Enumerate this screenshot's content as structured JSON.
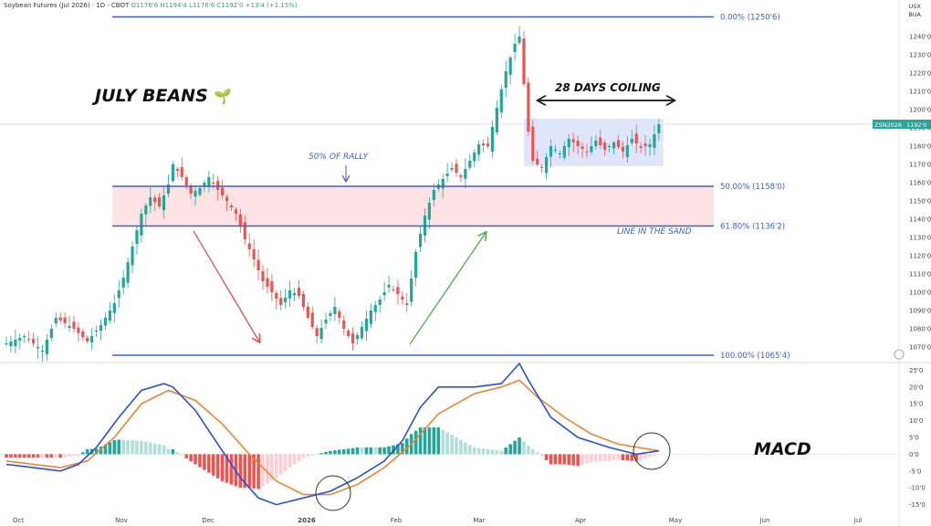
{
  "header": {
    "instrument": "Soybean Futures (Jul 2026) · 1D · CBOT",
    "ohlc": "O1176'6 H1194'4 L1176'6 C1192'0 +13'4 (+1.15%)"
  },
  "price_axis": {
    "currency": "USX",
    "unit": "BUA"
  },
  "price_tag": {
    "label": "ZSN2026",
    "value": "1192'0"
  },
  "annotations": {
    "title": "JULY BEANS",
    "coiling": "28 DAYS COILING",
    "fifty_rally": "50% OF RALLY",
    "line_in_sand": "LINE IN THE SAND",
    "macd": "MACD"
  },
  "fib_labels": {
    "level_0": "0.00% (1250'6)",
    "level_50": "50.00% (1158'0)",
    "level_618": "61.80% (1136'2)",
    "level_100": "100.00% (1065'4)"
  },
  "colors": {
    "up": "#26a69a",
    "down": "#ef5350",
    "fib_line": "#3b5fcf",
    "zone_fill": "#fde3e3",
    "box_fill": "#dfe6fb",
    "macd_line": "#2a4fd6",
    "signal_line": "#f0832c"
  },
  "chart_data": [
    {
      "type": "candlestick",
      "title": "",
      "x_ticks": [
        "Oct",
        "Nov",
        "Dec",
        "2026",
        "Feb",
        "Mar",
        "Apr",
        "May",
        "Jun",
        "Jul"
      ],
      "y_ticks": [
        "1240'0",
        "1230'0",
        "1220'0",
        "1210'0",
        "1200'0",
        "1190'0",
        "1180'0",
        "1170'0",
        "1160'0",
        "1150'0",
        "1140'0",
        "1130'0",
        "1120'0",
        "1110'0",
        "1100'0",
        "1090'0",
        "1080'0",
        "1070'0"
      ],
      "ylim": [
        1062,
        1254
      ],
      "fib_levels": [
        {
          "pct": 0,
          "price": 1250.75
        },
        {
          "pct": 50,
          "price": 1158.0
        },
        {
          "pct": 61.8,
          "price": 1136.25
        },
        {
          "pct": 100,
          "price": 1065.5
        }
      ],
      "price_path": [
        [
          0,
          1072
        ],
        [
          4,
          1076
        ],
        [
          8,
          1068
        ],
        [
          11,
          1086
        ],
        [
          15,
          1080
        ],
        [
          18,
          1073
        ],
        [
          21,
          1082
        ],
        [
          24,
          1094
        ],
        [
          26,
          1108
        ],
        [
          28,
          1125
        ],
        [
          30,
          1143
        ],
        [
          32,
          1152
        ],
        [
          34,
          1147
        ],
        [
          36,
          1159
        ],
        [
          37,
          1170
        ],
        [
          39,
          1163
        ],
        [
          41,
          1154
        ],
        [
          43,
          1157
        ],
        [
          45,
          1163
        ],
        [
          47,
          1156
        ],
        [
          49,
          1150
        ],
        [
          51,
          1143
        ],
        [
          53,
          1129
        ],
        [
          55,
          1118
        ],
        [
          57,
          1106
        ],
        [
          59,
          1100
        ],
        [
          61,
          1093
        ],
        [
          63,
          1101
        ],
        [
          65,
          1098
        ],
        [
          67,
          1086
        ],
        [
          69,
          1076
        ],
        [
          71,
          1085
        ],
        [
          73,
          1092
        ],
        [
          75,
          1080
        ],
        [
          77,
          1072
        ],
        [
          79,
          1081
        ],
        [
          81,
          1090
        ],
        [
          83,
          1096
        ],
        [
          85,
          1104
        ],
        [
          87,
          1099
        ],
        [
          89,
          1093
        ],
        [
          91,
          1122
        ],
        [
          93,
          1142
        ],
        [
          95,
          1156
        ],
        [
          97,
          1162
        ],
        [
          99,
          1168
        ],
        [
          101,
          1163
        ],
        [
          103,
          1172
        ],
        [
          105,
          1181
        ],
        [
          107,
          1180
        ],
        [
          109,
          1201
        ],
        [
          111,
          1221
        ],
        [
          113,
          1236
        ],
        [
          114,
          1240
        ],
        [
          115,
          1214
        ],
        [
          116,
          1188
        ],
        [
          117,
          1172
        ],
        [
          119,
          1168
        ],
        [
          121,
          1180
        ],
        [
          123,
          1176
        ],
        [
          125,
          1184
        ],
        [
          127,
          1180
        ],
        [
          129,
          1177
        ],
        [
          131,
          1183
        ],
        [
          133,
          1178
        ],
        [
          135,
          1182
        ],
        [
          137,
          1177
        ],
        [
          139,
          1184
        ],
        [
          141,
          1179
        ],
        [
          143,
          1181
        ],
        [
          145,
          1192
        ]
      ],
      "overlay_box": {
        "start_bar": 115,
        "end_bar": 146,
        "top": 1195,
        "bottom": 1169
      }
    },
    {
      "type": "macd",
      "title": "",
      "y_ticks": [
        "25'0",
        "20'0",
        "15'0",
        "10'0",
        "5'0",
        "0'0",
        "-5'0",
        "-10'0",
        "-15'0"
      ],
      "ylim": [
        -17,
        27
      ],
      "macd_path": [
        [
          0,
          -3
        ],
        [
          6,
          -4
        ],
        [
          12,
          -5
        ],
        [
          16,
          -3
        ],
        [
          20,
          2
        ],
        [
          25,
          11
        ],
        [
          30,
          19
        ],
        [
          35,
          21
        ],
        [
          37,
          20
        ],
        [
          42,
          13
        ],
        [
          47,
          3
        ],
        [
          52,
          -7
        ],
        [
          56,
          -13
        ],
        [
          60,
          -15
        ],
        [
          66,
          -13
        ],
        [
          72,
          -11
        ],
        [
          78,
          -7
        ],
        [
          84,
          -2
        ],
        [
          88,
          4
        ],
        [
          92,
          14
        ],
        [
          96,
          20
        ],
        [
          104,
          20
        ],
        [
          110,
          21
        ],
        [
          114,
          27
        ],
        [
          116,
          22
        ],
        [
          121,
          11
        ],
        [
          127,
          5
        ],
        [
          134,
          2
        ],
        [
          140,
          0
        ],
        [
          145,
          1
        ]
      ],
      "signal_path": [
        [
          0,
          -2
        ],
        [
          6,
          -3
        ],
        [
          12,
          -4
        ],
        [
          18,
          -2
        ],
        [
          24,
          5
        ],
        [
          30,
          15
        ],
        [
          36,
          19
        ],
        [
          42,
          16
        ],
        [
          48,
          9
        ],
        [
          54,
          0
        ],
        [
          60,
          -8
        ],
        [
          66,
          -12
        ],
        [
          72,
          -12
        ],
        [
          78,
          -9
        ],
        [
          84,
          -4
        ],
        [
          90,
          3
        ],
        [
          96,
          12
        ],
        [
          104,
          18
        ],
        [
          110,
          20
        ],
        [
          114,
          22
        ],
        [
          118,
          17
        ],
        [
          124,
          11
        ],
        [
          130,
          6
        ],
        [
          136,
          3
        ],
        [
          145,
          1
        ]
      ]
    }
  ]
}
